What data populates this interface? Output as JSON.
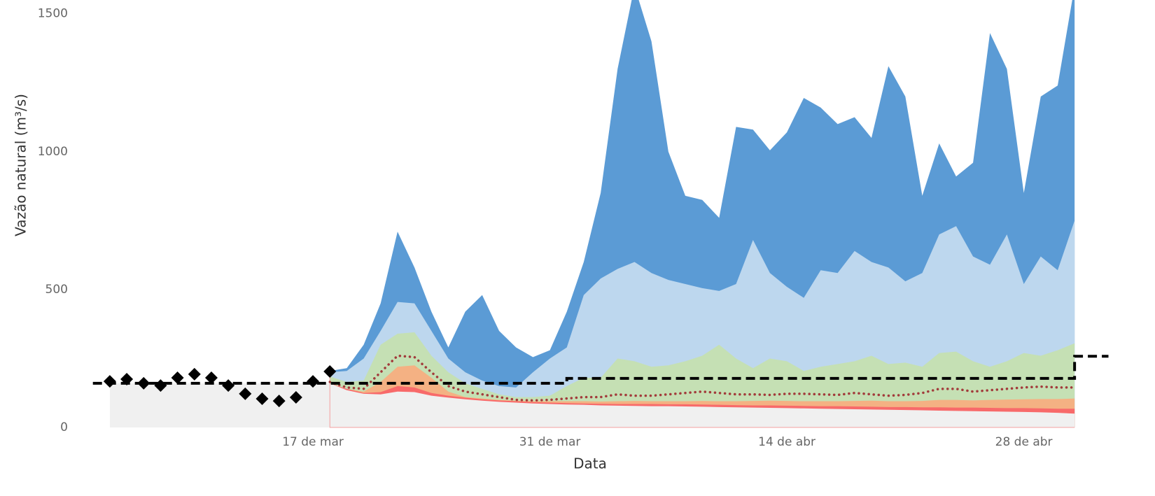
{
  "chart_data": {
    "type": "area",
    "x_label": "Data",
    "y_label": "Vazão natural (m³/s)",
    "xlim": [
      "03-04",
      "05-03"
    ],
    "ylim": [
      0,
      1550
    ],
    "yticks": [
      0,
      500,
      1000,
      1500
    ],
    "xticks": [
      {
        "value": "03-17",
        "label": "17 de mar"
      },
      {
        "value": "03-31",
        "label": "31 de mar"
      },
      {
        "value": "04-14",
        "label": "14 de abr"
      },
      {
        "value": "04-28",
        "label": "28 de abr"
      }
    ],
    "observed": {
      "color": "#000000",
      "x": [
        "03-05",
        "03-06",
        "03-07",
        "03-08",
        "03-09",
        "03-10",
        "03-11",
        "03-12",
        "03-13",
        "03-14",
        "03-15",
        "03-16",
        "03-17",
        "03-18"
      ],
      "values": [
        167,
        175,
        160,
        152,
        180,
        193,
        180,
        152,
        122,
        104,
        96,
        109,
        167,
        203
      ]
    },
    "reference": {
      "color": "#000000",
      "x": [
        "03-04",
        "04-01",
        "04-01",
        "05-01",
        "05-01",
        "05-03"
      ],
      "values": [
        160,
        160,
        178,
        178,
        258,
        258
      ]
    },
    "forecast": {
      "x": [
        "03-18",
        "03-19",
        "03-20",
        "03-21",
        "03-22",
        "03-23",
        "03-24",
        "03-25",
        "03-26",
        "03-27",
        "03-28",
        "03-29",
        "03-30",
        "03-31",
        "04-01",
        "04-02",
        "04-03",
        "04-04",
        "04-05",
        "04-06",
        "04-07",
        "04-08",
        "04-09",
        "04-10",
        "04-11",
        "04-12",
        "04-13",
        "04-14",
        "04-15",
        "04-16",
        "04-17",
        "04-18",
        "04-19",
        "04-20",
        "04-21",
        "04-22",
        "04-23",
        "04-24",
        "04-25",
        "04-26",
        "04-27",
        "04-28",
        "04-29",
        "04-30",
        "05-01"
      ],
      "series": [
        {
          "color": "#5b9bd5",
          "values": [
            205,
            215,
            300,
            450,
            710,
            580,
            420,
            290,
            420,
            480,
            350,
            290,
            255,
            280,
            420,
            600,
            850,
            1300,
            1600,
            1400,
            1000,
            840,
            825,
            760,
            1090,
            1080,
            1005,
            1070,
            1195,
            1160,
            1100,
            1125,
            1050,
            1310,
            1200,
            840,
            1030,
            910,
            960,
            1430,
            1300,
            850,
            1200,
            1240,
            1600
          ]
        },
        {
          "color": "#bdd7ee",
          "values": [
            200,
            205,
            250,
            350,
            455,
            450,
            350,
            250,
            200,
            170,
            150,
            145,
            200,
            250,
            290,
            480,
            540,
            575,
            600,
            560,
            535,
            520,
            505,
            495,
            520,
            680,
            560,
            510,
            470,
            570,
            560,
            640,
            600,
            580,
            530,
            560,
            700,
            730,
            620,
            590,
            700,
            520,
            620,
            570,
            750
          ]
        },
        {
          "color": "#c5e0b4",
          "values": [
            185,
            165,
            170,
            300,
            340,
            345,
            260,
            200,
            160,
            140,
            120,
            110,
            110,
            115,
            150,
            180,
            180,
            250,
            240,
            220,
            225,
            240,
            260,
            300,
            250,
            215,
            250,
            240,
            205,
            220,
            230,
            240,
            260,
            230,
            235,
            220,
            270,
            275,
            240,
            220,
            240,
            270,
            260,
            280,
            305
          ]
        },
        {
          "color": "#f4b183",
          "values": [
            160,
            140,
            130,
            165,
            220,
            225,
            180,
            130,
            110,
            105,
            100,
            97,
            95,
            95,
            95,
            95,
            94,
            95,
            96,
            95,
            95,
            95,
            96,
            95,
            95,
            96,
            97,
            96,
            95,
            95,
            95,
            96,
            97,
            95,
            95,
            96,
            100,
            100,
            98,
            100,
            101,
            102,
            103,
            103,
            105
          ]
        },
        {
          "color": "#f86a6a",
          "values": [
            160,
            140,
            125,
            128,
            150,
            145,
            125,
            115,
            108,
            102,
            98,
            95,
            92,
            90,
            88,
            87,
            86,
            85,
            85,
            85,
            84,
            84,
            83,
            82,
            81,
            80,
            80,
            79,
            78,
            77,
            77,
            76,
            75,
            74,
            74,
            73,
            73,
            72,
            72,
            71,
            70,
            70,
            69,
            68,
            68
          ]
        },
        {
          "color": "#f0f0f0",
          "values": [
            160,
            135,
            122,
            120,
            130,
            128,
            115,
            108,
            102,
            97,
            93,
            90,
            87,
            85,
            83,
            82,
            80,
            79,
            78,
            77,
            77,
            76,
            75,
            74,
            73,
            72,
            71,
            70,
            69,
            68,
            67,
            66,
            65,
            64,
            63,
            62,
            61,
            60,
            59,
            58,
            57,
            56,
            55,
            53,
            50
          ]
        }
      ],
      "median": {
        "color": "#a23b3b",
        "values": [
          165,
          145,
          140,
          200,
          260,
          255,
          200,
          150,
          130,
          120,
          110,
          100,
          98,
          100,
          105,
          110,
          110,
          120,
          115,
          115,
          120,
          125,
          130,
          125,
          120,
          120,
          118,
          122,
          122,
          120,
          118,
          125,
          120,
          115,
          118,
          125,
          140,
          140,
          130,
          135,
          140,
          145,
          148,
          145,
          145
        ]
      }
    }
  }
}
